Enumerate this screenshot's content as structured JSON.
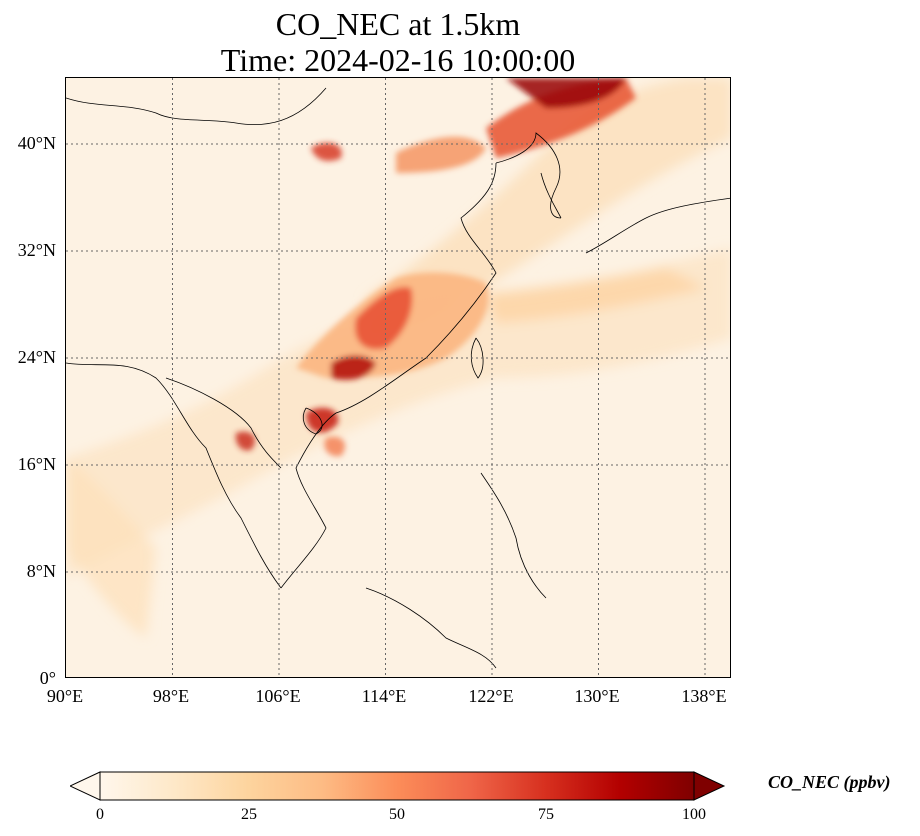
{
  "title": {
    "line1": "CO_NEC at 1.5km",
    "line2": "Time: 2024-02-16 10:00:00"
  },
  "map": {
    "variable": "CO_NEC",
    "height": "1.5km",
    "time": "2024-02-16 10:00:00",
    "lon_range": [
      90,
      140
    ],
    "lat_range": [
      0,
      45
    ],
    "grid": "dotted",
    "lat_ticks": [
      {
        "value": 0,
        "label": "0°"
      },
      {
        "value": 8,
        "label": "8°N"
      },
      {
        "value": 16,
        "label": "16°N"
      },
      {
        "value": 24,
        "label": "24°N"
      },
      {
        "value": 32,
        "label": "32°N"
      },
      {
        "value": 40,
        "label": "40°N"
      }
    ],
    "lon_ticks": [
      {
        "value": 90,
        "label": "90°E"
      },
      {
        "value": 98,
        "label": "98°E"
      },
      {
        "value": 106,
        "label": "106°E"
      },
      {
        "value": 114,
        "label": "114°E"
      },
      {
        "value": 122,
        "label": "122°E"
      },
      {
        "value": 130,
        "label": "130°E"
      },
      {
        "value": 138,
        "label": "138°E"
      }
    ]
  },
  "colorbar": {
    "label": "CO_NEC (ppbv)",
    "min": 0,
    "max": 100,
    "extend": "both",
    "colormap": "OrRd",
    "ticks": [
      {
        "value": 0,
        "label": "0"
      },
      {
        "value": 25,
        "label": "25"
      },
      {
        "value": 50,
        "label": "50"
      },
      {
        "value": 75,
        "label": "75"
      },
      {
        "value": 100,
        "label": "100"
      }
    ]
  }
}
